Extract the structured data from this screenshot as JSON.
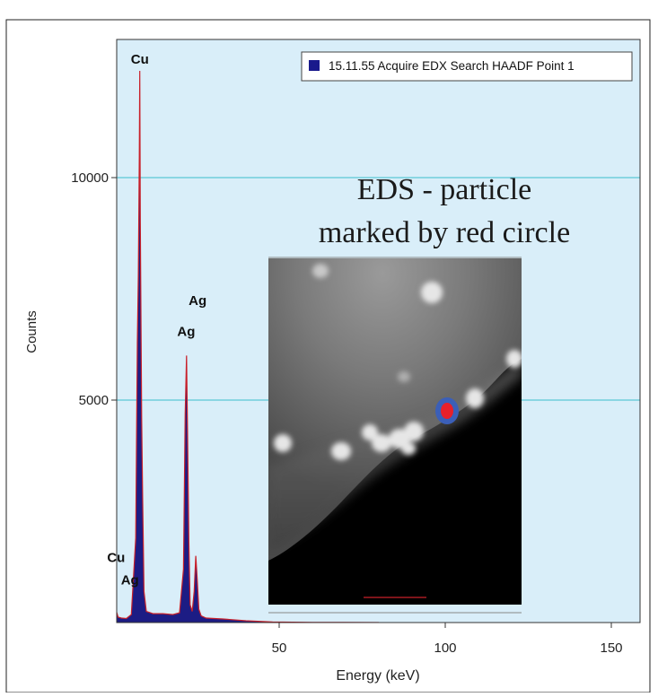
{
  "chart_data": {
    "type": "line",
    "title": "",
    "xlabel": "Energy (keV)",
    "ylabel": "Counts",
    "xlim": [
      0,
      160
    ],
    "ylim": [
      0,
      12500
    ],
    "x_ticks": [
      50,
      100,
      150
    ],
    "y_ticks": [
      5000,
      10000
    ],
    "gridlines": "horizontal",
    "legend": {
      "position": "top-right",
      "entries": [
        {
          "label": "15.11.55 Acquire EDX Search HAADF Point 1",
          "color": "#1a1a8c"
        }
      ]
    },
    "series": [
      {
        "x": [
          0,
          0.5,
          1.0,
          1.5,
          2.5,
          4,
          5.5,
          6.8,
          7.3,
          7.6,
          7.9,
          8.04,
          8.2,
          8.6,
          8.9,
          9.3,
          10,
          12,
          15,
          18,
          20,
          21.2,
          21.7,
          22.1,
          22.4,
          22.8,
          23.2,
          23.8,
          24.4,
          24.9,
          25.3,
          25.8,
          26.5,
          28,
          33,
          40,
          48,
          60,
          80
        ],
        "y": [
          1600,
          700,
          250,
          120,
          100,
          90,
          180,
          1900,
          6300,
          7800,
          10500,
          12400,
          9000,
          4600,
          2800,
          700,
          250,
          200,
          200,
          180,
          220,
          1200,
          4700,
          6000,
          4300,
          1800,
          400,
          250,
          700,
          1500,
          1000,
          300,
          150,
          100,
          80,
          40,
          15,
          5,
          0
        ]
      }
    ],
    "peak_labels": [
      {
        "text": "Cu",
        "x": 8.04,
        "counts": 12400
      },
      {
        "text": "Ag",
        "x": 22.2,
        "counts": 6900
      },
      {
        "text": "Ag",
        "x": 22.0,
        "counts": 6200
      },
      {
        "text": "Cu",
        "x": 0.9,
        "counts": 1200
      },
      {
        "text": "Ag",
        "x": 2.9,
        "counts": 700
      }
    ],
    "annotation": {
      "line1": "EDS - particle",
      "line2": "marked by red circle"
    },
    "inset_image": {
      "description_colors": {
        "marker": "#e8202a",
        "marker_ring": "#3b5fb8"
      }
    }
  },
  "colors": {
    "plot_background": "#d9eef9",
    "gridline": "#5bc7d6",
    "spectrum_fill": "#1c1c84",
    "spectrum_line": "#c8202a"
  }
}
